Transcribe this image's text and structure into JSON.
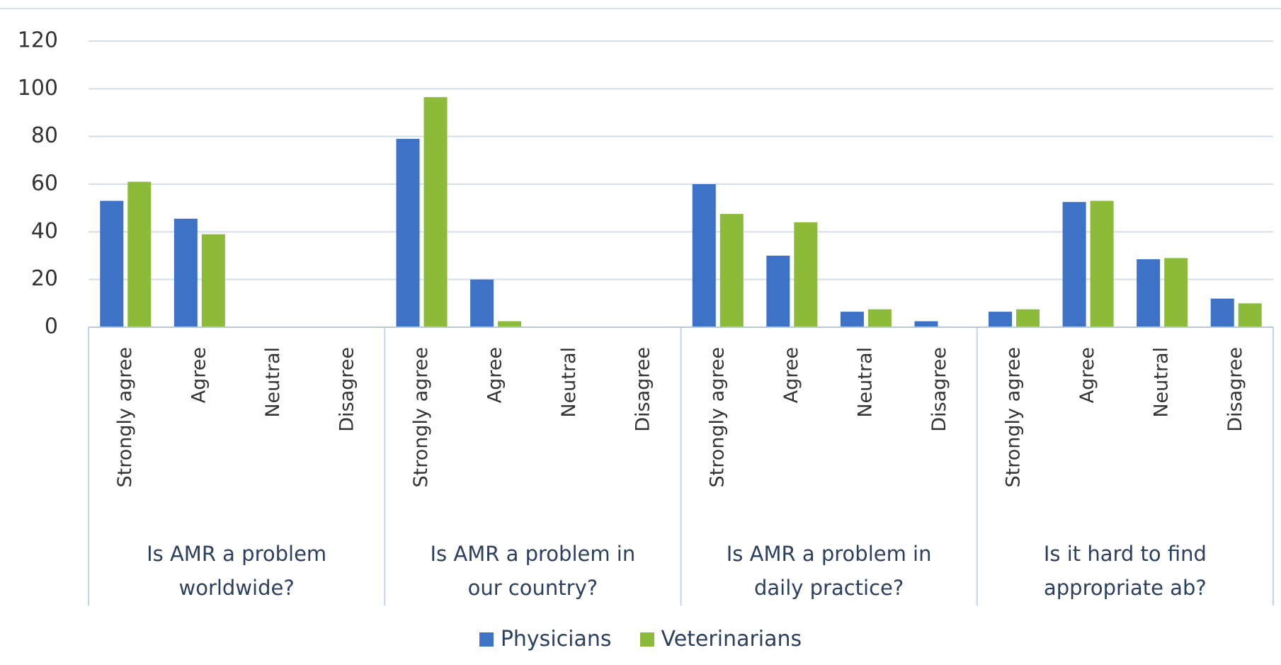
{
  "chart_data": {
    "type": "bar",
    "groups": [
      {
        "name": "Is AMR a problem worldwide?",
        "categories": [
          "Strongly agree",
          "Agree",
          "Neutral",
          "Disagree"
        ]
      },
      {
        "name": "Is AMR a problem in our country?",
        "categories": [
          "Strongly agree",
          "Agree",
          "Neutral",
          "Disagree"
        ]
      },
      {
        "name": "Is AMR a problem in daily practice?",
        "categories": [
          "Strongly agree",
          "Agree",
          "Neutral",
          "Disagree"
        ]
      },
      {
        "name": "Is it hard to find appropriate ab?",
        "categories": [
          "Strongly agree",
          "Agree",
          "Neutral",
          "Disagree"
        ]
      }
    ],
    "series": [
      {
        "name": "Physicians",
        "color": "#3d72c7",
        "values": [
          53,
          45.5,
          0,
          0,
          79,
          20,
          0,
          0,
          60,
          30,
          6.5,
          2.5,
          6.5,
          52.5,
          28.5,
          12
        ]
      },
      {
        "name": "Veterinarians",
        "color": "#8cbb3a",
        "values": [
          61,
          39,
          0,
          0,
          96.5,
          2.5,
          0,
          0,
          47.5,
          44,
          7.5,
          0,
          7.5,
          53,
          29,
          10
        ]
      }
    ],
    "ylim": [
      0,
      120
    ],
    "yticks": [
      0,
      20,
      40,
      60,
      80,
      100,
      120
    ],
    "grid": true,
    "legend": "bottom"
  }
}
